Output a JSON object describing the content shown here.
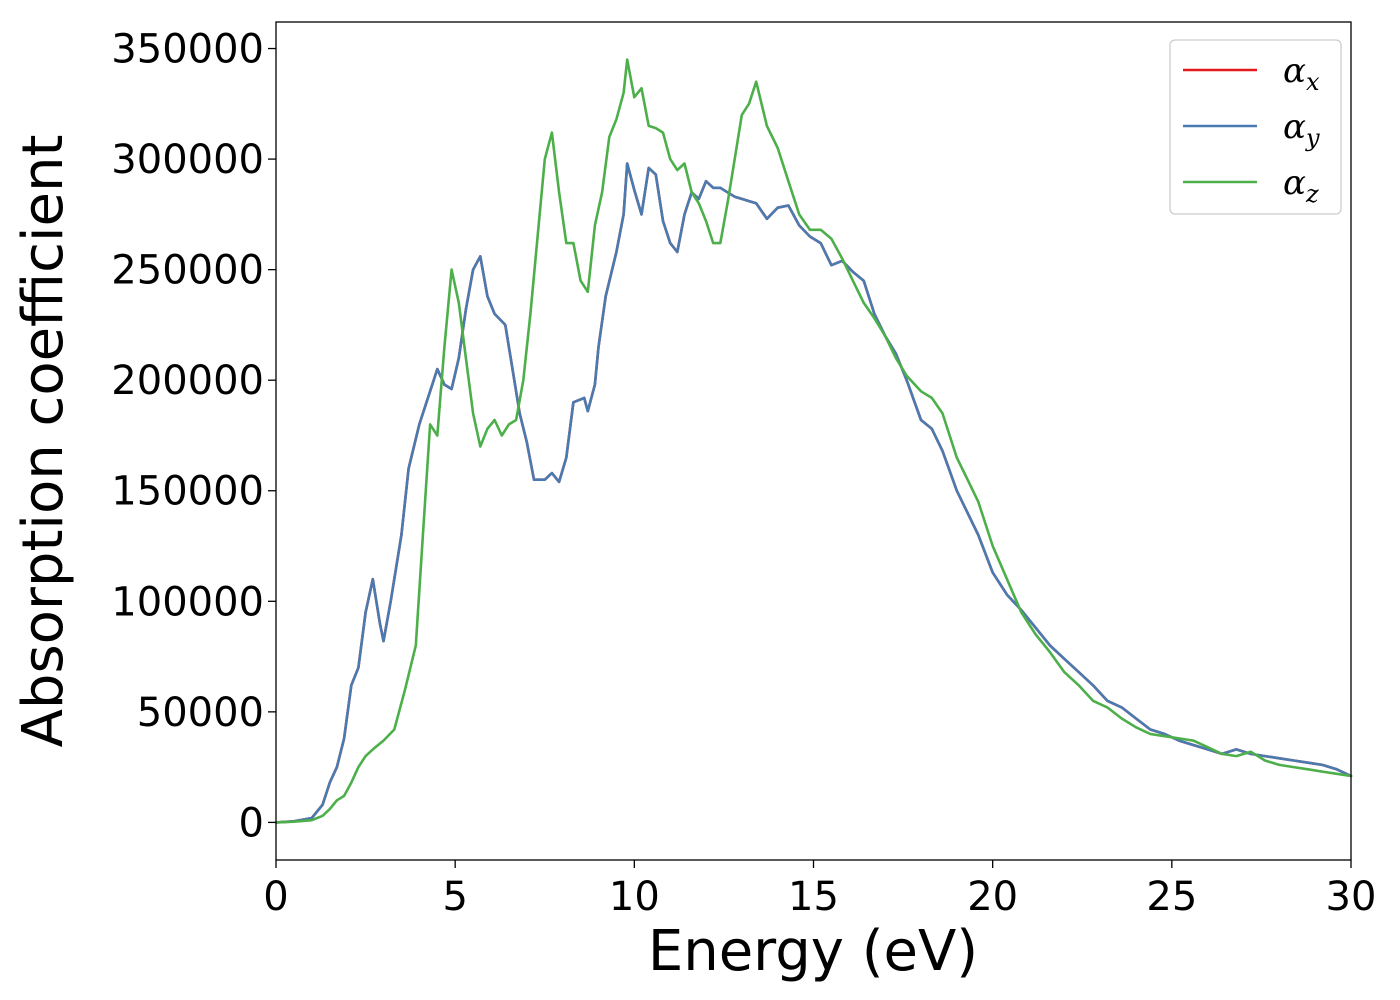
{
  "chart_data": {
    "type": "line",
    "xlabel": "Energy (eV)",
    "ylabel": "Absorption coefficient",
    "xlim": [
      0,
      30
    ],
    "ylim": [
      -17000,
      362000
    ],
    "xticks": [
      0,
      5,
      10,
      15,
      20,
      25,
      30
    ],
    "yticks": [
      0,
      50000,
      100000,
      150000,
      200000,
      250000,
      300000,
      350000
    ],
    "grid": false,
    "legend_position": "top-right",
    "series": [
      {
        "name": "α",
        "subscript": "x",
        "color": "#e41a1c",
        "x": [
          0,
          0.5,
          1.0,
          1.3,
          1.5,
          1.7,
          1.9,
          2.1,
          2.3,
          2.5,
          2.7,
          2.9,
          3.0,
          3.2,
          3.5,
          3.7,
          4.0,
          4.3,
          4.5,
          4.7,
          4.9,
          5.1,
          5.3,
          5.5,
          5.7,
          5.9,
          6.1,
          6.4,
          6.6,
          6.8,
          7.0,
          7.2,
          7.5,
          7.7,
          7.9,
          8.1,
          8.3,
          8.6,
          8.7,
          8.9,
          9.0,
          9.2,
          9.5,
          9.7,
          9.8,
          10.0,
          10.2,
          10.4,
          10.6,
          10.8,
          11.0,
          11.2,
          11.4,
          11.6,
          11.8,
          12.0,
          12.2,
          12.4,
          12.6,
          12.8,
          13.0,
          13.2,
          13.4,
          13.7,
          14.0,
          14.3,
          14.6,
          14.9,
          15.2,
          15.5,
          15.8,
          16.1,
          16.4,
          16.7,
          17.0,
          17.3,
          17.6,
          18.0,
          18.3,
          18.6,
          19.0,
          19.3,
          19.6,
          20.0,
          20.4,
          20.8,
          21.2,
          21.6,
          22.0,
          22.4,
          22.8,
          23.2,
          23.6,
          24.0,
          24.4,
          24.8,
          25.2,
          25.6,
          26.0,
          26.4,
          26.8,
          27.2,
          27.6,
          28.0,
          28.4,
          28.8,
          29.2,
          29.6,
          30.0
        ],
        "y": [
          0,
          500,
          2000,
          8000,
          18000,
          25000,
          38000,
          62000,
          70000,
          95000,
          110000,
          90000,
          82000,
          100000,
          130000,
          160000,
          180000,
          195000,
          205000,
          198000,
          196000,
          210000,
          232000,
          250000,
          256000,
          238000,
          230000,
          225000,
          205000,
          185000,
          172000,
          155000,
          155000,
          158000,
          154000,
          165000,
          190000,
          192000,
          186000,
          198000,
          215000,
          238000,
          258000,
          275000,
          298000,
          286000,
          275000,
          296000,
          293000,
          272000,
          262000,
          258000,
          275000,
          285000,
          282000,
          290000,
          287000,
          287000,
          285000,
          283000,
          282000,
          281000,
          280000,
          273000,
          278000,
          279000,
          270000,
          265000,
          262000,
          252000,
          254000,
          249000,
          245000,
          230000,
          220000,
          212000,
          200000,
          182000,
          178000,
          168000,
          150000,
          140000,
          130000,
          113000,
          103000,
          96000,
          88000,
          80000,
          74000,
          68000,
          62000,
          55000,
          52000,
          47000,
          42000,
          40000,
          37000,
          35000,
          33000,
          31000,
          33000,
          31000,
          30000,
          29000,
          28000,
          27000,
          26000,
          24000,
          21000
        ]
      },
      {
        "name": "α",
        "subscript": "y",
        "color": "#4a7bb0",
        "x": [
          0,
          0.5,
          1.0,
          1.3,
          1.5,
          1.7,
          1.9,
          2.1,
          2.3,
          2.5,
          2.7,
          2.9,
          3.0,
          3.2,
          3.5,
          3.7,
          4.0,
          4.3,
          4.5,
          4.7,
          4.9,
          5.1,
          5.3,
          5.5,
          5.7,
          5.9,
          6.1,
          6.4,
          6.6,
          6.8,
          7.0,
          7.2,
          7.5,
          7.7,
          7.9,
          8.1,
          8.3,
          8.6,
          8.7,
          8.9,
          9.0,
          9.2,
          9.5,
          9.7,
          9.8,
          10.0,
          10.2,
          10.4,
          10.6,
          10.8,
          11.0,
          11.2,
          11.4,
          11.6,
          11.8,
          12.0,
          12.2,
          12.4,
          12.6,
          12.8,
          13.0,
          13.2,
          13.4,
          13.7,
          14.0,
          14.3,
          14.6,
          14.9,
          15.2,
          15.5,
          15.8,
          16.1,
          16.4,
          16.7,
          17.0,
          17.3,
          17.6,
          18.0,
          18.3,
          18.6,
          19.0,
          19.3,
          19.6,
          20.0,
          20.4,
          20.8,
          21.2,
          21.6,
          22.0,
          22.4,
          22.8,
          23.2,
          23.6,
          24.0,
          24.4,
          24.8,
          25.2,
          25.6,
          26.0,
          26.4,
          26.8,
          27.2,
          27.6,
          28.0,
          28.4,
          28.8,
          29.2,
          29.6,
          30.0
        ],
        "y": [
          0,
          500,
          2000,
          8000,
          18000,
          25000,
          38000,
          62000,
          70000,
          95000,
          110000,
          90000,
          82000,
          100000,
          130000,
          160000,
          180000,
          195000,
          205000,
          198000,
          196000,
          210000,
          232000,
          250000,
          256000,
          238000,
          230000,
          225000,
          205000,
          185000,
          172000,
          155000,
          155000,
          158000,
          154000,
          165000,
          190000,
          192000,
          186000,
          198000,
          215000,
          238000,
          258000,
          275000,
          298000,
          286000,
          275000,
          296000,
          293000,
          272000,
          262000,
          258000,
          275000,
          285000,
          282000,
          290000,
          287000,
          287000,
          285000,
          283000,
          282000,
          281000,
          280000,
          273000,
          278000,
          279000,
          270000,
          265000,
          262000,
          252000,
          254000,
          249000,
          245000,
          230000,
          220000,
          212000,
          200000,
          182000,
          178000,
          168000,
          150000,
          140000,
          130000,
          113000,
          103000,
          96000,
          88000,
          80000,
          74000,
          68000,
          62000,
          55000,
          52000,
          47000,
          42000,
          40000,
          37000,
          35000,
          33000,
          31000,
          33000,
          31000,
          30000,
          29000,
          28000,
          27000,
          26000,
          24000,
          21000
        ]
      },
      {
        "name": "α",
        "subscript": "z",
        "color": "#4daf4a",
        "x": [
          0,
          0.5,
          1.0,
          1.3,
          1.5,
          1.7,
          1.9,
          2.1,
          2.3,
          2.5,
          2.7,
          3.0,
          3.3,
          3.6,
          3.9,
          4.1,
          4.3,
          4.5,
          4.7,
          4.9,
          5.1,
          5.3,
          5.5,
          5.7,
          5.9,
          6.1,
          6.3,
          6.5,
          6.7,
          6.9,
          7.1,
          7.3,
          7.5,
          7.7,
          7.9,
          8.1,
          8.3,
          8.5,
          8.7,
          8.9,
          9.1,
          9.3,
          9.5,
          9.7,
          9.8,
          10.0,
          10.2,
          10.4,
          10.6,
          10.8,
          11.0,
          11.2,
          11.4,
          11.6,
          11.8,
          12.0,
          12.2,
          12.4,
          12.6,
          12.8,
          13.0,
          13.2,
          13.4,
          13.7,
          14.0,
          14.3,
          14.6,
          14.9,
          15.2,
          15.5,
          15.8,
          16.1,
          16.4,
          16.7,
          17.0,
          17.3,
          17.6,
          18.0,
          18.3,
          18.6,
          19.0,
          19.3,
          19.6,
          20.0,
          20.4,
          20.8,
          21.2,
          21.6,
          22.0,
          22.4,
          22.8,
          23.2,
          23.6,
          24.0,
          24.4,
          24.8,
          25.2,
          25.6,
          26.0,
          26.4,
          26.8,
          27.2,
          27.6,
          28.0,
          28.4,
          28.8,
          29.2,
          29.6,
          30.0
        ],
        "y": [
          0,
          300,
          1000,
          3000,
          6000,
          10000,
          12000,
          18000,
          25000,
          30000,
          33000,
          37000,
          42000,
          60000,
          80000,
          130000,
          180000,
          175000,
          215000,
          250000,
          235000,
          210000,
          185000,
          170000,
          178000,
          182000,
          175000,
          180000,
          182000,
          200000,
          230000,
          265000,
          300000,
          312000,
          285000,
          262000,
          262000,
          245000,
          240000,
          270000,
          285000,
          310000,
          318000,
          330000,
          345000,
          328000,
          332000,
          315000,
          314000,
          312000,
          300000,
          295000,
          298000,
          285000,
          280000,
          272000,
          262000,
          262000,
          280000,
          300000,
          320000,
          325000,
          335000,
          315000,
          305000,
          290000,
          275000,
          268000,
          268000,
          264000,
          255000,
          245000,
          235000,
          228000,
          220000,
          210000,
          202000,
          195000,
          192000,
          185000,
          165000,
          155000,
          145000,
          125000,
          110000,
          95000,
          85000,
          77000,
          68000,
          62000,
          55000,
          52000,
          47000,
          43000,
          40000,
          39000,
          38000,
          37000,
          34000,
          31000,
          30000,
          32000,
          28000,
          26000,
          25000,
          24000,
          23000,
          22000,
          21000
        ]
      }
    ]
  }
}
